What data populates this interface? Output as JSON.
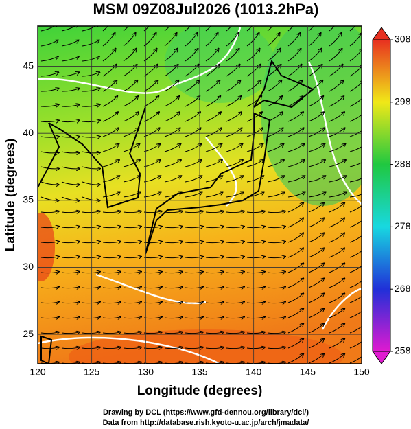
{
  "map": {
    "title": "MSM 09Z08Jul2026 (1013.2hPa)",
    "xlabel": "Longitude (degrees)",
    "ylabel": "Latitude  (degrees)",
    "xlim": [
      120,
      150
    ],
    "ylim": [
      22.8,
      48
    ],
    "xticks": [
      120,
      125,
      130,
      135,
      140,
      145,
      150
    ],
    "yticks": [
      25,
      30,
      35,
      40,
      45
    ],
    "colorbar": {
      "lim": [
        258,
        308
      ],
      "ticks": [
        258,
        268,
        278,
        288,
        298,
        308
      ]
    },
    "footer": [
      "Drawing by DCL (https://www.gfd-dennou.org/library/dcl/)",
      "Data from http://database.rish.kyoto-u.ac.jp/arch/jmadata/"
    ]
  }
}
